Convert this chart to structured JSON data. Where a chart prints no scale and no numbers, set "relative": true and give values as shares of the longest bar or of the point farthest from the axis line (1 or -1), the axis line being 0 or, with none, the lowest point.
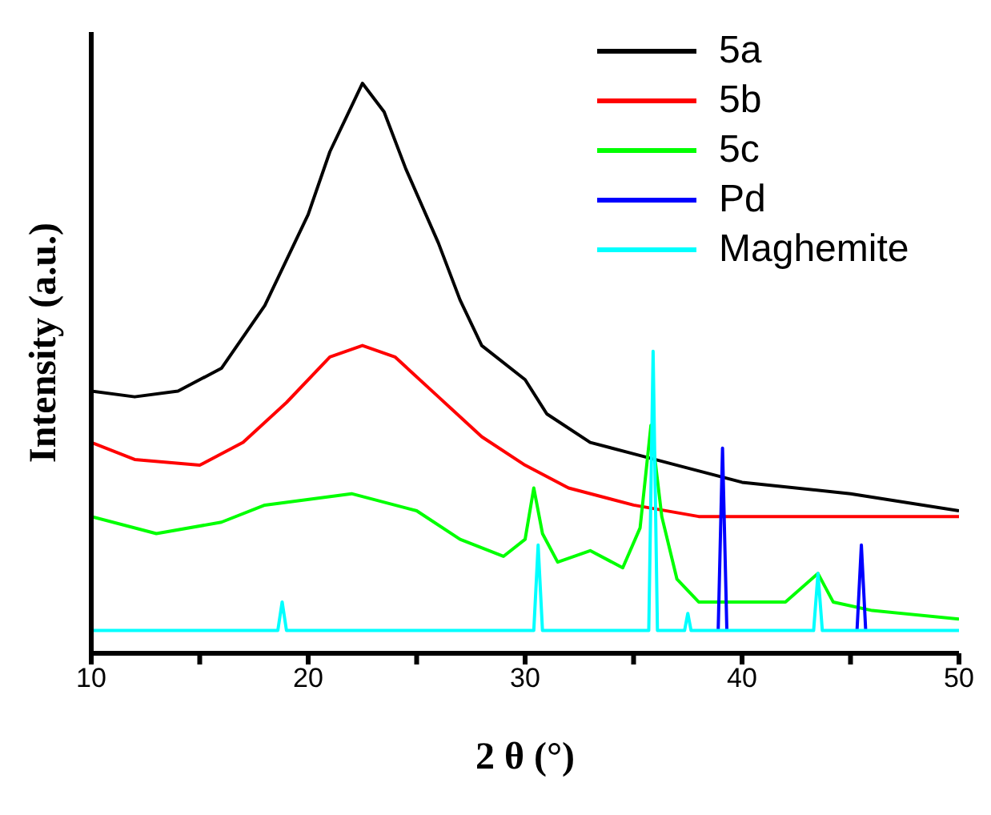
{
  "chart_data": {
    "type": "line",
    "relative": true,
    "xlabel": "2 θ (°)",
    "ylabel": "Intensity (a.u.)",
    "xlim": [
      10,
      50
    ],
    "xticks": [
      10,
      {
        "value": 15,
        "label": null
      },
      20,
      {
        "value": 25,
        "label": null
      },
      30,
      {
        "value": 35,
        "label": null
      },
      40,
      {
        "value": 45,
        "label": null
      },
      50
    ],
    "legend": "top right",
    "grid": false,
    "marker": "none",
    "line_style": "solid",
    "series": [
      {
        "name": "5a",
        "color": "#000000",
        "x": [
          10,
          12,
          14,
          16,
          18,
          20,
          21,
          22,
          22.5,
          23.5,
          24.5,
          26,
          27,
          28,
          30,
          31,
          33,
          35,
          37,
          40,
          45,
          50
        ],
        "values": [
          0.46,
          0.45,
          0.46,
          0.5,
          0.61,
          0.77,
          0.88,
          0.96,
          1.0,
          0.95,
          0.85,
          0.72,
          0.62,
          0.54,
          0.48,
          0.42,
          0.37,
          0.35,
          0.33,
          0.3,
          0.28,
          0.25
        ]
      },
      {
        "name": "5b",
        "color": "#ff0000",
        "x": [
          10,
          12,
          15,
          17,
          19,
          21,
          22.5,
          24,
          26,
          28,
          30,
          32,
          35,
          38,
          40,
          45,
          50
        ],
        "values": [
          0.37,
          0.34,
          0.33,
          0.37,
          0.44,
          0.52,
          0.54,
          0.52,
          0.45,
          0.38,
          0.33,
          0.29,
          0.26,
          0.24,
          0.24,
          0.24,
          0.24
        ]
      },
      {
        "name": "5c",
        "color": "#00ff00",
        "x": [
          10,
          13,
          16,
          18,
          22,
          25,
          27,
          29,
          30,
          30.4,
          30.8,
          31.5,
          33,
          34.5,
          35.3,
          35.8,
          36.3,
          37,
          38,
          42,
          43.5,
          44.2,
          46,
          50
        ],
        "values": [
          0.24,
          0.21,
          0.23,
          0.26,
          0.28,
          0.25,
          0.2,
          0.17,
          0.2,
          0.29,
          0.21,
          0.16,
          0.18,
          0.15,
          0.22,
          0.4,
          0.24,
          0.13,
          0.09,
          0.09,
          0.14,
          0.09,
          0.075,
          0.06
        ]
      },
      {
        "name": "Pd",
        "color": "#0000ff",
        "x": [
          38.9,
          39.1,
          39.3,
          42,
          45.3,
          45.5,
          45.7
        ],
        "values": [
          0.04,
          0.36,
          0.04,
          null,
          0.04,
          0.19,
          0.04
        ]
      },
      {
        "name": "Maghemite",
        "color": "#00ffff",
        "x": [
          10,
          18.6,
          18.8,
          19.0,
          30.4,
          30.6,
          30.8,
          35.7,
          35.9,
          36.1,
          37.35,
          37.5,
          37.65,
          43.3,
          43.5,
          43.7,
          50
        ],
        "values": [
          0.04,
          0.04,
          0.09,
          0.04,
          0.04,
          0.19,
          0.04,
          0.04,
          0.53,
          0.04,
          0.04,
          0.07,
          0.04,
          0.04,
          0.14,
          0.04,
          0.04
        ]
      }
    ]
  }
}
